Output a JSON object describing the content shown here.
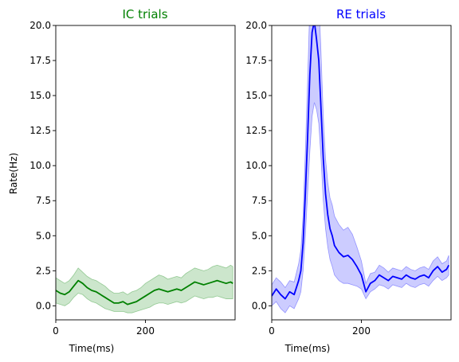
{
  "chart_data": [
    {
      "type": "line",
      "title": "IC trials",
      "title_color": "#008000",
      "line_color": "#008000",
      "band_color": "#008000",
      "xlabel": "Time(ms)",
      "ylabel": "Rate(Hz)",
      "xlim": [
        0,
        400
      ],
      "ylim": [
        -1.0,
        20.0
      ],
      "xticks": [
        0,
        200
      ],
      "yticks": [
        0.0,
        2.5,
        5.0,
        7.5,
        10.0,
        12.5,
        15.0,
        17.5,
        20.0
      ],
      "ytick_labels": [
        "0.0",
        "2.5",
        "5.0",
        "7.5",
        "10.0",
        "12.5",
        "15.0",
        "17.5",
        "20.0"
      ],
      "show_yticklabels": true,
      "grid": false,
      "series": [
        {
          "x": [
            0,
            10,
            20,
            30,
            40,
            50,
            60,
            70,
            80,
            90,
            100,
            110,
            120,
            130,
            140,
            150,
            160,
            170,
            180,
            190,
            200,
            210,
            220,
            230,
            240,
            250,
            260,
            270,
            280,
            290,
            300,
            310,
            320,
            330,
            340,
            350,
            360,
            370,
            380,
            390,
            395
          ],
          "y": [
            1.1,
            0.9,
            0.8,
            1.0,
            1.4,
            1.8,
            1.6,
            1.3,
            1.1,
            1.0,
            0.8,
            0.6,
            0.4,
            0.2,
            0.2,
            0.3,
            0.1,
            0.2,
            0.3,
            0.5,
            0.7,
            0.9,
            1.1,
            1.2,
            1.1,
            1.0,
            1.1,
            1.2,
            1.1,
            1.3,
            1.5,
            1.7,
            1.6,
            1.5,
            1.6,
            1.7,
            1.8,
            1.7,
            1.6,
            1.7,
            1.6
          ],
          "lower": [
            0.2,
            0.1,
            0.0,
            0.2,
            0.6,
            0.9,
            0.8,
            0.5,
            0.3,
            0.2,
            0.0,
            -0.2,
            -0.3,
            -0.4,
            -0.4,
            -0.4,
            -0.5,
            -0.5,
            -0.4,
            -0.3,
            -0.2,
            -0.1,
            0.1,
            0.2,
            0.2,
            0.1,
            0.2,
            0.3,
            0.2,
            0.3,
            0.5,
            0.7,
            0.6,
            0.5,
            0.6,
            0.6,
            0.7,
            0.6,
            0.5,
            0.5,
            0.5
          ],
          "upper": [
            2.0,
            1.8,
            1.6,
            1.8,
            2.2,
            2.7,
            2.4,
            2.1,
            1.9,
            1.8,
            1.6,
            1.4,
            1.1,
            0.9,
            0.9,
            1.0,
            0.8,
            1.0,
            1.1,
            1.3,
            1.6,
            1.8,
            2.0,
            2.2,
            2.1,
            1.9,
            2.0,
            2.1,
            2.0,
            2.3,
            2.5,
            2.7,
            2.6,
            2.5,
            2.6,
            2.8,
            2.9,
            2.8,
            2.7,
            2.9,
            2.8
          ]
        }
      ]
    },
    {
      "type": "line",
      "title": "RE trials",
      "title_color": "#0000ff",
      "line_color": "#0000ff",
      "band_color": "#0000ff",
      "xlabel": "Time(ms)",
      "ylabel": "",
      "xlim": [
        0,
        400
      ],
      "ylim": [
        -1.0,
        20.0
      ],
      "xticks": [
        0,
        200
      ],
      "yticks": [
        0.0,
        2.5,
        5.0,
        7.5,
        10.0,
        12.5,
        15.0,
        17.5,
        20.0
      ],
      "ytick_labels": [
        "0.0",
        "2.5",
        "5.0",
        "7.5",
        "10.0",
        "12.5",
        "15.0",
        "17.5",
        "20.0"
      ],
      "show_yticklabels": true,
      "grid": false,
      "series": [
        {
          "x": [
            0,
            10,
            20,
            30,
            40,
            50,
            60,
            65,
            70,
            75,
            80,
            85,
            90,
            95,
            100,
            105,
            110,
            115,
            120,
            125,
            130,
            135,
            140,
            150,
            160,
            170,
            180,
            190,
            200,
            210,
            220,
            230,
            240,
            250,
            260,
            270,
            280,
            290,
            300,
            310,
            320,
            330,
            340,
            350,
            360,
            370,
            380,
            390,
            395
          ],
          "y": [
            0.7,
            1.2,
            0.8,
            0.5,
            1.0,
            0.8,
            1.8,
            2.5,
            4.5,
            8.0,
            12.0,
            16.5,
            19.5,
            20.3,
            19.0,
            17.5,
            14.0,
            10.5,
            8.0,
            6.5,
            5.5,
            5.0,
            4.3,
            3.8,
            3.5,
            3.6,
            3.3,
            2.8,
            2.2,
            1.0,
            1.6,
            1.8,
            2.2,
            2.0,
            1.8,
            2.1,
            2.0,
            1.9,
            2.2,
            2.0,
            1.9,
            2.1,
            2.2,
            2.0,
            2.5,
            2.8,
            2.4,
            2.6,
            2.9
          ],
          "lower": [
            0.0,
            0.3,
            -0.2,
            -0.5,
            0.0,
            -0.2,
            0.5,
            1.0,
            2.5,
            5.0,
            8.0,
            11.0,
            13.5,
            14.5,
            14.0,
            13.0,
            10.5,
            7.5,
            5.5,
            4.2,
            3.3,
            2.8,
            2.2,
            1.8,
            1.6,
            1.6,
            1.5,
            1.4,
            1.2,
            0.5,
            1.0,
            1.2,
            1.5,
            1.4,
            1.2,
            1.5,
            1.4,
            1.3,
            1.6,
            1.4,
            1.3,
            1.5,
            1.6,
            1.4,
            1.8,
            2.1,
            1.8,
            2.0,
            2.2
          ],
          "upper": [
            1.5,
            2.0,
            1.7,
            1.3,
            1.8,
            1.7,
            3.0,
            4.0,
            6.5,
            11.0,
            16.0,
            21.5,
            25.0,
            26.0,
            24.5,
            22.0,
            18.0,
            13.5,
            10.5,
            8.8,
            7.7,
            7.2,
            6.4,
            5.8,
            5.4,
            5.6,
            5.1,
            4.2,
            3.2,
            1.6,
            2.3,
            2.4,
            2.9,
            2.7,
            2.4,
            2.7,
            2.6,
            2.5,
            2.8,
            2.6,
            2.5,
            2.7,
            2.8,
            2.6,
            3.2,
            3.5,
            3.0,
            3.2,
            3.6
          ]
        }
      ]
    }
  ]
}
